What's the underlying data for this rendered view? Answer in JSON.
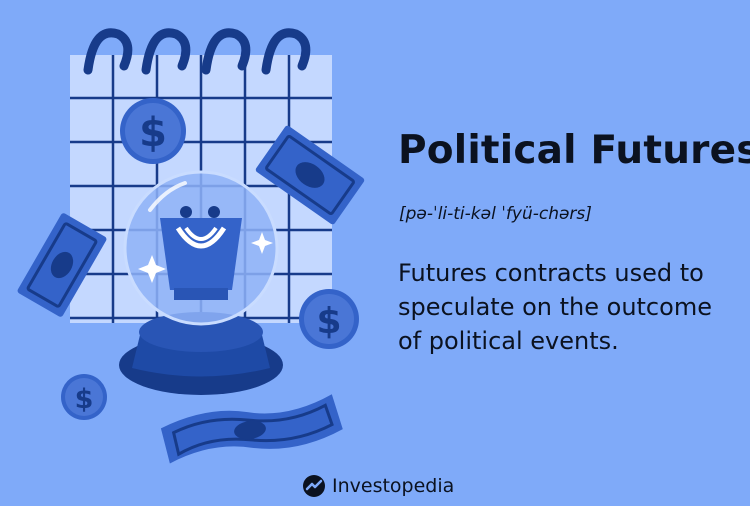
{
  "term": {
    "title": "Political Futures",
    "pronunciation": "[pə-ˈli-ti-kəl ˈfyü-chərs]",
    "definition": "Futures contracts used to speculate on the outcome of political events."
  },
  "brand": {
    "name": "Investopedia",
    "icon": "investopedia-logo-icon"
  },
  "illustration": {
    "currency_symbol": "$",
    "colors": {
      "background": "#7faaf9",
      "dark": "#173b8a",
      "mid": "#3463c9",
      "light": "#c9dcff"
    }
  }
}
